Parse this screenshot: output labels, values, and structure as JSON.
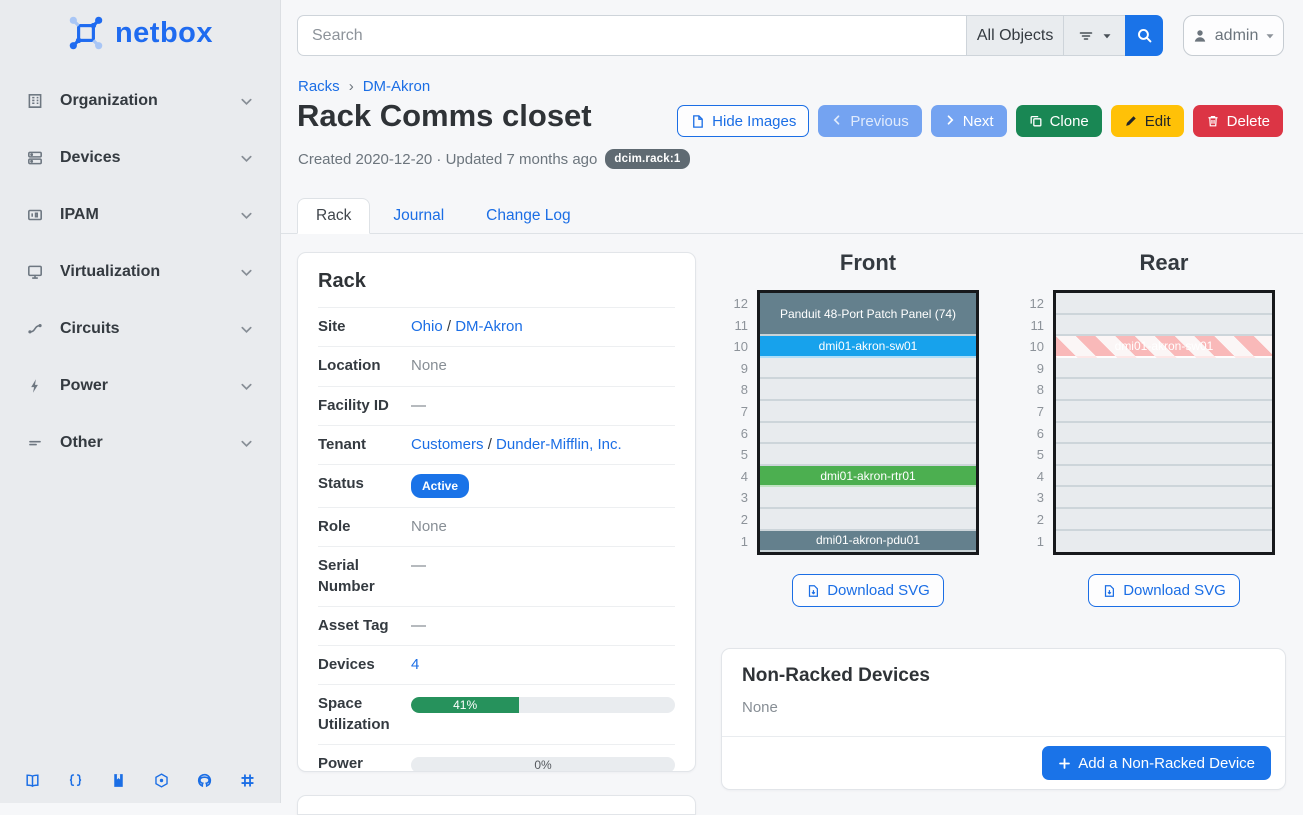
{
  "colors": {
    "accent_blue": "#1a73e8",
    "link_blue": "#1b6ee5",
    "success_green": "#198754",
    "warning_yellow": "#ffc107",
    "danger_red": "#dc3545",
    "device_slate": "#64808d",
    "device_blue": "#17a2ec",
    "device_green": "#4caf50",
    "reservation_stripe_pink": "#f9b9b9",
    "sidebar_bg": "#e9ebee"
  },
  "sidebar": {
    "logo_text": "netbox",
    "items": [
      {
        "label": "Organization",
        "icon": "organization-icon"
      },
      {
        "label": "Devices",
        "icon": "devices-icon"
      },
      {
        "label": "IPAM",
        "icon": "ipam-icon"
      },
      {
        "label": "Virtualization",
        "icon": "virtualization-icon"
      },
      {
        "label": "Circuits",
        "icon": "circuits-icon"
      },
      {
        "label": "Power",
        "icon": "power-icon"
      },
      {
        "label": "Other",
        "icon": "other-icon"
      }
    ],
    "footer_icons": [
      "docs-book-icon",
      "rest-api-braces-icon",
      "api-docs-journal-icon",
      "graphql-icon",
      "github-icon",
      "community-slack-icon"
    ]
  },
  "topbar": {
    "search_placeholder": "Search",
    "object_type": "All Objects",
    "user": "admin"
  },
  "breadcrumb": {
    "item1": "Racks",
    "sep": "›",
    "item2": "DM-Akron"
  },
  "page": {
    "title": "Rack Comms closet",
    "meta": "Created 2020-12-20 · Updated 7 months ago",
    "badge": "dcim.rack:1"
  },
  "actions": {
    "hide_images": "Hide Images",
    "previous": "Previous",
    "next": "Next",
    "clone": "Clone",
    "edit": "Edit",
    "delete": "Delete"
  },
  "tabs": {
    "rack": "Rack",
    "journal": "Journal",
    "changelog": "Change Log"
  },
  "rack_panel": {
    "title": "Rack",
    "site": {
      "label": "Site",
      "link1": "Ohio",
      "sep": "/",
      "link2": "DM-Akron"
    },
    "location": {
      "label": "Location",
      "value": "None"
    },
    "facility": {
      "label": "Facility ID",
      "value": "—"
    },
    "tenant": {
      "label": "Tenant",
      "link1": "Customers",
      "sep": "/",
      "link2": "Dunder-Mifflin, Inc."
    },
    "status": {
      "label": "Status",
      "value": "Active"
    },
    "role": {
      "label": "Role",
      "value": "None"
    },
    "serial": {
      "label": "Serial Number",
      "value": "—"
    },
    "asset": {
      "label": "Asset Tag",
      "value": "—"
    },
    "devices": {
      "label": "Devices",
      "value": "4"
    },
    "space": {
      "label": "Space Utilization",
      "pct": 41,
      "text": "41%"
    },
    "power": {
      "label": "Power Utilization",
      "pct": 0,
      "text": "0%"
    }
  },
  "elevations": {
    "unit_numbers": [
      "12",
      "11",
      "10",
      "9",
      "8",
      "7",
      "6",
      "5",
      "4",
      "3",
      "2",
      "1"
    ],
    "front": {
      "title": "Front",
      "download": "Download SVG",
      "devices": {
        "u12_11": "Panduit 48-Port Patch Panel (74)",
        "u10": "dmi01-akron-sw01",
        "u4": "dmi01-akron-rtr01",
        "u1": "dmi01-akron-pdu01"
      }
    },
    "rear": {
      "title": "Rear",
      "download": "Download SVG",
      "devices": {
        "u10": "dmi01-akron-sw01"
      }
    }
  },
  "nonracked": {
    "title": "Non-Racked Devices",
    "empty": "None",
    "add": "Add a Non-Racked Device"
  }
}
